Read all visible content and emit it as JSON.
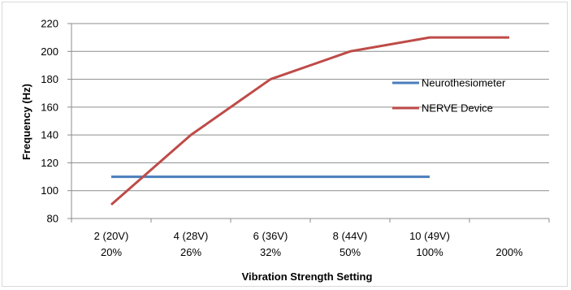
{
  "chart_data": {
    "type": "line",
    "xlabel": "Vibration Strength Setting",
    "ylabel": "Frequency (Hz)",
    "ylim": [
      80,
      220
    ],
    "yticks": [
      80,
      100,
      120,
      140,
      160,
      180,
      200,
      220
    ],
    "grid": "horizontal",
    "legend_position": "right",
    "categories": [
      {
        "line1": "2 (20V)",
        "line2": "20%"
      },
      {
        "line1": "4 (28V)",
        "line2": "26%"
      },
      {
        "line1": "6 (36V)",
        "line2": "32%"
      },
      {
        "line1": "8 (44V)",
        "line2": "50%"
      },
      {
        "line1": "10 (49V)",
        "line2": "100%"
      },
      {
        "line1": "",
        "line2": "200%"
      }
    ],
    "series": [
      {
        "name": "Neurothesiometer",
        "color": "#4a7ebb",
        "values": [
          110,
          110,
          110,
          110,
          110,
          null
        ]
      },
      {
        "name": "NERVE Device",
        "color": "#be4b48",
        "values": [
          90,
          140,
          180,
          200,
          210,
          210
        ]
      }
    ]
  }
}
